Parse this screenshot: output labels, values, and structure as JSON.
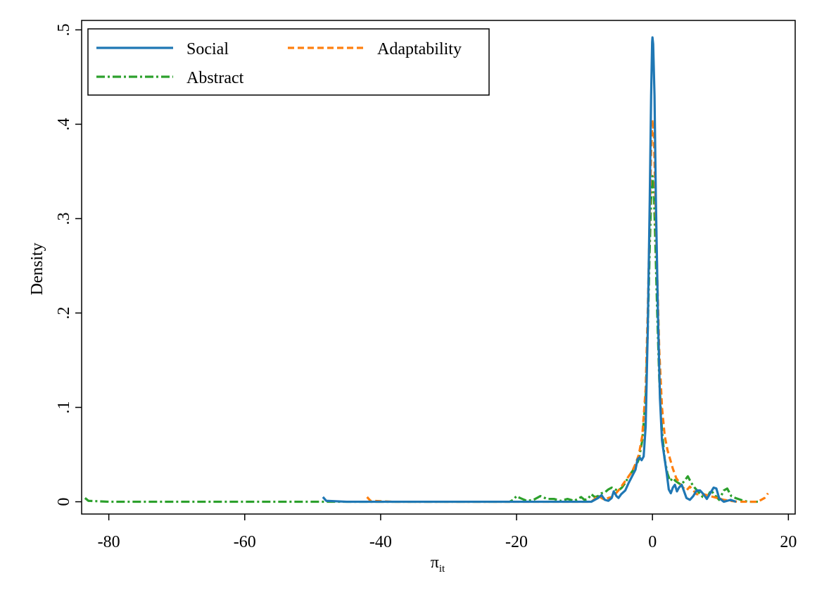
{
  "chart_data": {
    "type": "line",
    "title": "",
    "xlabel": "π",
    "xlabel_sub": "it",
    "ylabel": "Density",
    "xlim": [
      -84,
      21
    ],
    "ylim": [
      -0.013,
      0.51
    ],
    "x_ticks": [
      -80,
      -60,
      -40,
      -20,
      0,
      20
    ],
    "x_tick_labels": [
      "-80",
      "-60",
      "-40",
      "-20",
      "0",
      "20"
    ],
    "y_ticks": [
      0,
      0.1,
      0.2,
      0.3,
      0.4,
      0.5
    ],
    "y_tick_labels": [
      "0",
      ".1",
      ".2",
      ".3",
      ".4",
      ".5"
    ],
    "grid": false,
    "legend_placement": "top-left",
    "series": [
      {
        "name": "Social",
        "color": "#1f77b4",
        "dash": "solid",
        "points": [
          [
            -48.5,
            0.005
          ],
          [
            -48,
            0.001
          ],
          [
            -45,
            0
          ],
          [
            -40,
            0
          ],
          [
            -30,
            0
          ],
          [
            -20,
            0
          ],
          [
            -10,
            0
          ],
          [
            -9,
            0
          ],
          [
            -8,
            0.004
          ],
          [
            -7.5,
            0.007
          ],
          [
            -7,
            0.002
          ],
          [
            -6.5,
            0.001
          ],
          [
            -6.0,
            0.004
          ],
          [
            -5.7,
            0.011
          ],
          [
            -5.3,
            0.006
          ],
          [
            -5.0,
            0.004
          ],
          [
            -4.6,
            0.008
          ],
          [
            -4.0,
            0.012
          ],
          [
            -3.5,
            0.02
          ],
          [
            -3.0,
            0.027
          ],
          [
            -2.5,
            0.034
          ],
          [
            -2.2,
            0.045
          ],
          [
            -1.9,
            0.047
          ],
          [
            -1.6,
            0.044
          ],
          [
            -1.3,
            0.048
          ],
          [
            -1.0,
            0.08
          ],
          [
            -0.7,
            0.18
          ],
          [
            -0.4,
            0.32
          ],
          [
            -0.2,
            0.43
          ],
          [
            -0.05,
            0.487
          ],
          [
            0,
            0.492
          ],
          [
            0.1,
            0.485
          ],
          [
            0.3,
            0.43
          ],
          [
            0.5,
            0.32
          ],
          [
            0.8,
            0.2
          ],
          [
            1.1,
            0.11
          ],
          [
            1.4,
            0.065
          ],
          [
            1.8,
            0.045
          ],
          [
            2.1,
            0.03
          ],
          [
            2.4,
            0.013
          ],
          [
            2.7,
            0.009
          ],
          [
            3.0,
            0.015
          ],
          [
            3.3,
            0.018
          ],
          [
            3.6,
            0.011
          ],
          [
            3.9,
            0.015
          ],
          [
            4.3,
            0.018
          ],
          [
            4.7,
            0.01
          ],
          [
            5.0,
            0.004
          ],
          [
            5.5,
            0.002
          ],
          [
            6.0,
            0.006
          ],
          [
            6.5,
            0.012
          ],
          [
            7.0,
            0.012
          ],
          [
            7.5,
            0.008
          ],
          [
            8.0,
            0.003
          ],
          [
            8.5,
            0.009
          ],
          [
            9.0,
            0.015
          ],
          [
            9.4,
            0.014
          ],
          [
            9.8,
            0.004
          ],
          [
            10.5,
            0.0
          ],
          [
            11.5,
            0.002
          ],
          [
            12.3,
            0.0
          ]
        ]
      },
      {
        "name": "Adaptability",
        "color": "#ff7f0e",
        "dash": "9,5",
        "points": [
          [
            -42,
            0.005
          ],
          [
            -41.5,
            0.001
          ],
          [
            -38,
            0
          ],
          [
            -30,
            0
          ],
          [
            -20,
            0
          ],
          [
            -10,
            0
          ],
          [
            -9,
            0
          ],
          [
            -8.5,
            0.003
          ],
          [
            -8,
            0.007
          ],
          [
            -7.5,
            0.004
          ],
          [
            -7,
            0.002
          ],
          [
            -6.5,
            0.004
          ],
          [
            -6.0,
            0.005
          ],
          [
            -5.5,
            0.008
          ],
          [
            -5.0,
            0.012
          ],
          [
            -4.5,
            0.017
          ],
          [
            -4.0,
            0.022
          ],
          [
            -3.5,
            0.027
          ],
          [
            -3.0,
            0.032
          ],
          [
            -2.5,
            0.04
          ],
          [
            -2.0,
            0.05
          ],
          [
            -1.5,
            0.07
          ],
          [
            -1.0,
            0.12
          ],
          [
            -0.7,
            0.2
          ],
          [
            -0.4,
            0.3
          ],
          [
            -0.2,
            0.37
          ],
          [
            0,
            0.405
          ],
          [
            0.2,
            0.39
          ],
          [
            0.4,
            0.33
          ],
          [
            0.7,
            0.24
          ],
          [
            1.0,
            0.16
          ],
          [
            1.4,
            0.1
          ],
          [
            1.8,
            0.07
          ],
          [
            2.2,
            0.055
          ],
          [
            2.6,
            0.045
          ],
          [
            3.0,
            0.035
          ],
          [
            3.5,
            0.025
          ],
          [
            4.0,
            0.02
          ],
          [
            4.5,
            0.015
          ],
          [
            5.0,
            0.012
          ],
          [
            5.5,
            0.016
          ],
          [
            6.0,
            0.012
          ],
          [
            6.5,
            0.008
          ],
          [
            7.5,
            0.008
          ],
          [
            8.5,
            0.006
          ],
          [
            9.5,
            0.004
          ],
          [
            10.5,
            0.002
          ],
          [
            11.5,
            0.001
          ],
          [
            12.5,
            0.0
          ],
          [
            14,
            0.0
          ],
          [
            15.5,
            0.0
          ],
          [
            16.5,
            0.004
          ],
          [
            17,
            0.009
          ]
        ]
      },
      {
        "name": "Abstract",
        "color": "#2ca02c",
        "dash": "12,4,3,4",
        "points": [
          [
            -83.5,
            0.004
          ],
          [
            -83,
            0.001
          ],
          [
            -80,
            0
          ],
          [
            -70,
            0
          ],
          [
            -60,
            0
          ],
          [
            -50,
            0
          ],
          [
            -40,
            0
          ],
          [
            -30,
            0
          ],
          [
            -25,
            0
          ],
          [
            -21,
            0
          ],
          [
            -20.5,
            0.002
          ],
          [
            -20,
            0.006
          ],
          [
            -19.5,
            0.004
          ],
          [
            -18.5,
            0.001
          ],
          [
            -17.5,
            0.002
          ],
          [
            -16.5,
            0.006
          ],
          [
            -15.5,
            0.003
          ],
          [
            -14.5,
            0.003
          ],
          [
            -13.5,
            0.001
          ],
          [
            -12.5,
            0.003
          ],
          [
            -11.5,
            0.001
          ],
          [
            -10.5,
            0.005
          ],
          [
            -10,
            0.002
          ],
          [
            -9.5,
            0.003
          ],
          [
            -9.0,
            0.008
          ],
          [
            -8.5,
            0.005
          ],
          [
            -8.0,
            0.006
          ],
          [
            -7.5,
            0.009
          ],
          [
            -7.0,
            0.01
          ],
          [
            -6.5,
            0.013
          ],
          [
            -6.0,
            0.015
          ],
          [
            -5.5,
            0.013
          ],
          [
            -5.0,
            0.012
          ],
          [
            -4.5,
            0.015
          ],
          [
            -4.0,
            0.02
          ],
          [
            -3.5,
            0.027
          ],
          [
            -3.0,
            0.032
          ],
          [
            -2.5,
            0.037
          ],
          [
            -2.0,
            0.045
          ],
          [
            -1.5,
            0.065
          ],
          [
            -1.0,
            0.11
          ],
          [
            -0.7,
            0.18
          ],
          [
            -0.4,
            0.27
          ],
          [
            -0.2,
            0.32
          ],
          [
            0,
            0.345
          ],
          [
            0.2,
            0.33
          ],
          [
            0.4,
            0.28
          ],
          [
            0.7,
            0.2
          ],
          [
            1.0,
            0.13
          ],
          [
            1.4,
            0.075
          ],
          [
            1.8,
            0.045
          ],
          [
            2.2,
            0.03
          ],
          [
            2.6,
            0.022
          ],
          [
            3.0,
            0.025
          ],
          [
            3.4,
            0.022
          ],
          [
            3.8,
            0.02
          ],
          [
            4.2,
            0.018
          ],
          [
            4.7,
            0.022
          ],
          [
            5.2,
            0.027
          ],
          [
            5.7,
            0.02
          ],
          [
            6.2,
            0.015
          ],
          [
            6.8,
            0.01
          ],
          [
            7.4,
            0.005
          ],
          [
            8.0,
            0.004
          ],
          [
            8.6,
            0.012
          ],
          [
            9.2,
            0.007
          ],
          [
            9.8,
            0.002
          ],
          [
            10.5,
            0.012
          ],
          [
            11.0,
            0.014
          ],
          [
            11.6,
            0.006
          ],
          [
            12.2,
            0.004
          ],
          [
            13.0,
            0.002
          ],
          [
            14,
            0.0
          ],
          [
            15.5,
            0.0
          ]
        ]
      }
    ]
  }
}
